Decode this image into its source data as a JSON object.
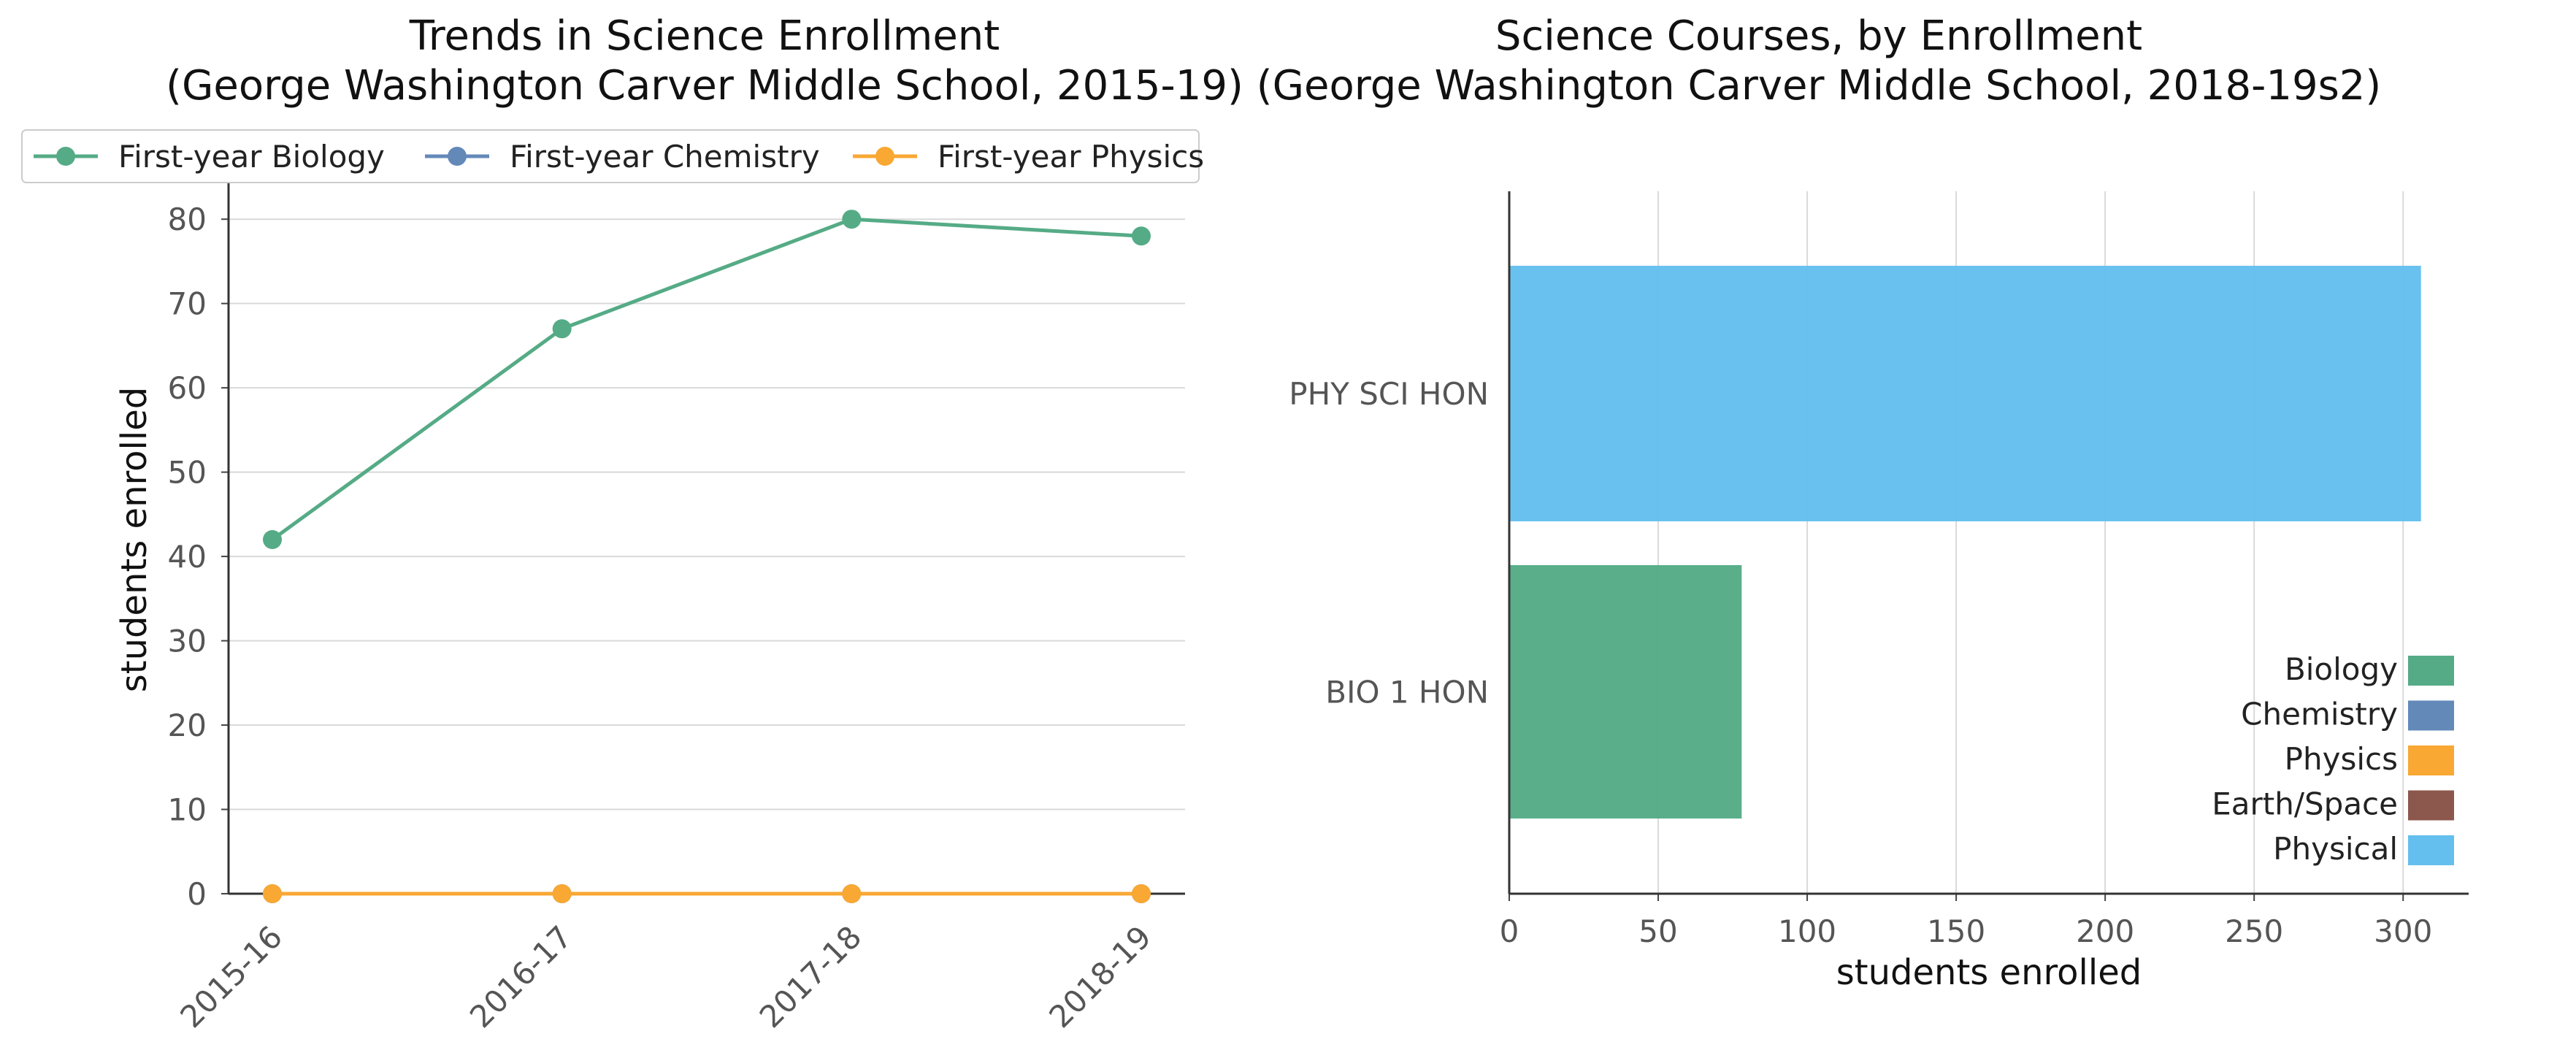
{
  "chart_data": [
    {
      "type": "line",
      "title": "Trends in Science Enrollment\n(George Washington Carver Middle School, 2015-19)",
      "xlabel": "",
      "ylabel": "students enrolled",
      "categories": [
        "2015-16",
        "2016-17",
        "2017-18",
        "2018-19"
      ],
      "series": [
        {
          "name": "First-year Biology",
          "color": "#55ab86",
          "values": [
            42,
            67,
            80,
            78
          ]
        },
        {
          "name": "First-year Chemistry",
          "color": "#6389b8",
          "values": [
            0,
            0,
            0,
            0
          ]
        },
        {
          "name": "First-year Physics",
          "color": "#f8a833",
          "values": [
            0,
            0,
            0,
            0
          ]
        }
      ],
      "ylim": [
        0,
        84
      ],
      "yticks": [
        0,
        10,
        20,
        30,
        40,
        50,
        60,
        70,
        80
      ],
      "grid": "horizontal",
      "legend_position": "top"
    },
    {
      "type": "bar",
      "orientation": "horizontal",
      "title": "Science Courses, by Enrollment\n(George Washington Carver Middle School, 2018-19s2)",
      "xlabel": "students enrolled",
      "ylabel": "",
      "categories": [
        "PHY SCI HON",
        "BIO 1 HON"
      ],
      "values": [
        306,
        78
      ],
      "bar_categories": [
        "Physical",
        "Biology"
      ],
      "xlim": [
        0,
        322
      ],
      "xticks": [
        0,
        50,
        100,
        150,
        200,
        250,
        300
      ],
      "grid": "vertical",
      "legend_position": "lower-right",
      "legend": [
        {
          "name": "Biology",
          "color": "#55ab86"
        },
        {
          "name": "Chemistry",
          "color": "#6389b8"
        },
        {
          "name": "Physics",
          "color": "#f8a833"
        },
        {
          "name": "Earth/Space",
          "color": "#8c574c"
        },
        {
          "name": "Physical",
          "color": "#64bfee"
        }
      ]
    }
  ]
}
